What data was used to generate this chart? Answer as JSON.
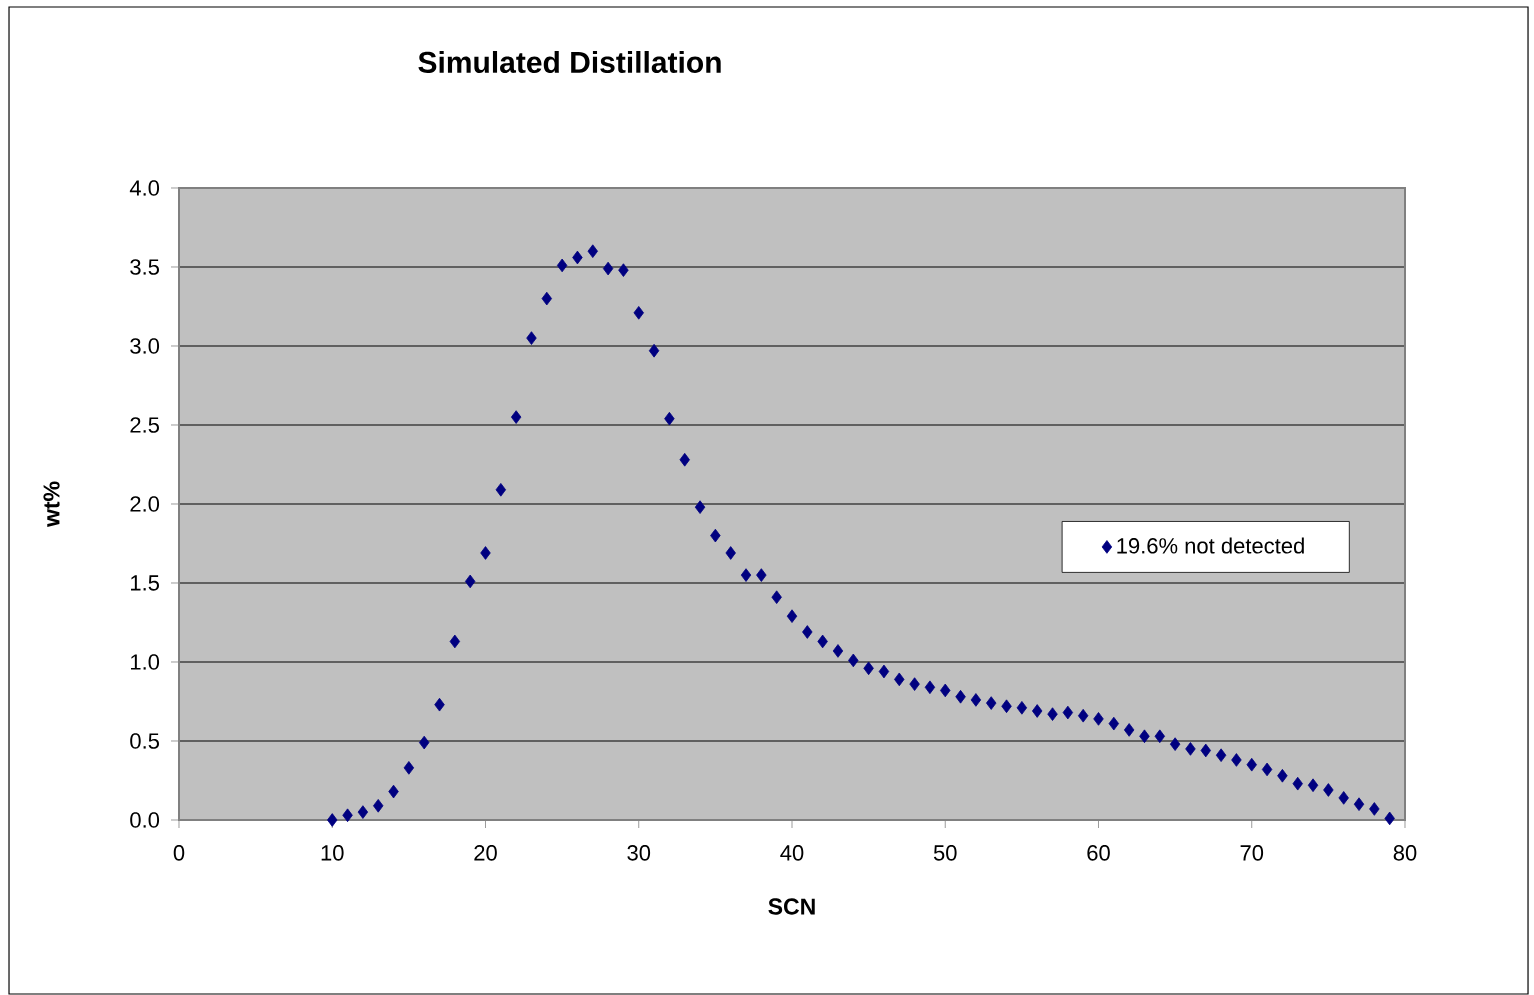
{
  "chart_data": {
    "type": "scatter",
    "title": "Simulated Distillation",
    "xlabel": "SCN",
    "ylabel": "wt%",
    "x": [
      10,
      11,
      12,
      13,
      14,
      15,
      16,
      17,
      18,
      19,
      20,
      21,
      22,
      23,
      24,
      25,
      26,
      27,
      28,
      29,
      30,
      31,
      32,
      33,
      34,
      35,
      36,
      37,
      38,
      39,
      40,
      41,
      42,
      43,
      44,
      45,
      46,
      47,
      48,
      49,
      50,
      51,
      52,
      53,
      54,
      55,
      56,
      57,
      58,
      59,
      60,
      61,
      62,
      63,
      64,
      65,
      66,
      67,
      68,
      69,
      70,
      71,
      72,
      73,
      74,
      75,
      76,
      77,
      78,
      79
    ],
    "series": [
      {
        "name": "19.6% not detected",
        "color": "#000080",
        "values": [
          0.0,
          0.03,
          0.05,
          0.09,
          0.18,
          0.33,
          0.49,
          0.73,
          1.13,
          1.51,
          1.69,
          2.09,
          2.55,
          3.05,
          3.3,
          3.51,
          3.56,
          3.6,
          3.49,
          3.48,
          3.21,
          2.97,
          2.54,
          2.28,
          1.98,
          1.8,
          1.69,
          1.55,
          1.55,
          1.41,
          1.29,
          1.19,
          1.13,
          1.07,
          1.01,
          0.96,
          0.94,
          0.89,
          0.86,
          0.84,
          0.82,
          0.78,
          0.76,
          0.74,
          0.72,
          0.71,
          0.69,
          0.67,
          0.68,
          0.66,
          0.64,
          0.61,
          0.57,
          0.53,
          0.53,
          0.48,
          0.45,
          0.44,
          0.41,
          0.38,
          0.35,
          0.32,
          0.28,
          0.23,
          0.22,
          0.19,
          0.14,
          0.1,
          0.07,
          0.01
        ]
      }
    ],
    "xlim": [
      0,
      80
    ],
    "xticks": [
      0,
      10,
      20,
      30,
      40,
      50,
      60,
      70,
      80
    ],
    "ylim": [
      0,
      4.0
    ],
    "yticks": [
      {
        "value": 0,
        "label": "0.0"
      },
      {
        "value": 0.5,
        "label": "0.5"
      },
      {
        "value": 1,
        "label": "1.0"
      },
      {
        "value": 1.5,
        "label": "1.5"
      },
      {
        "value": 2,
        "label": "2.0"
      },
      {
        "value": 2.5,
        "label": "2.5"
      },
      {
        "value": 3,
        "label": "3.0"
      },
      {
        "value": 3.5,
        "label": "3.5"
      },
      {
        "value": 4,
        "label": "4.0"
      }
    ],
    "grid": "y",
    "legend": "right",
    "marker": "diamond"
  }
}
